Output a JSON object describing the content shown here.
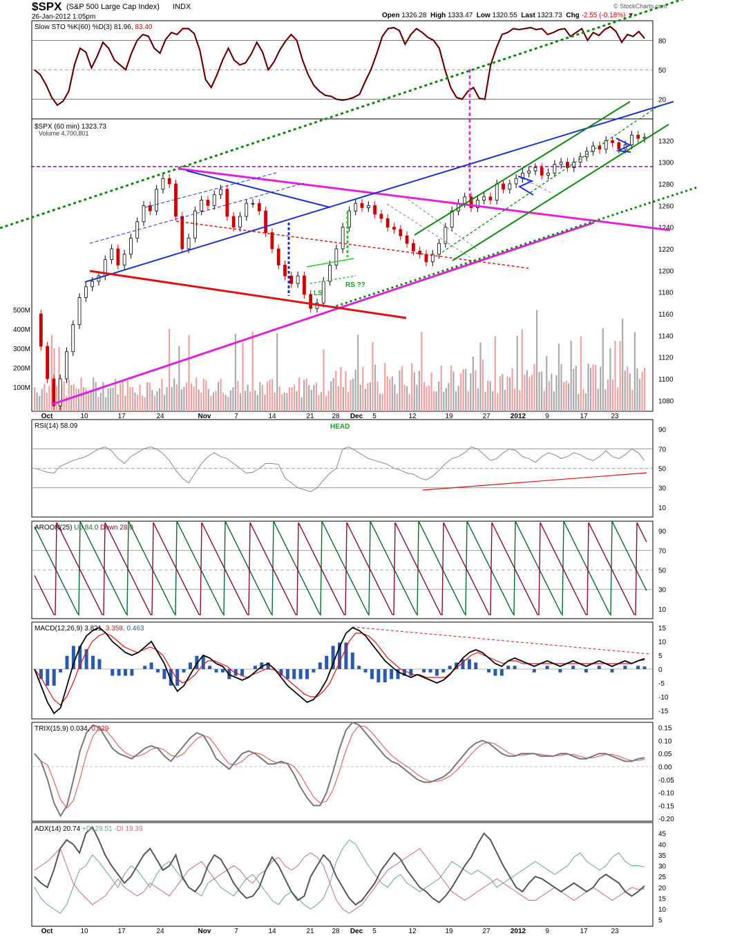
{
  "header": {
    "symbol": "$SPX",
    "name": "(S&P 500 Large Cap Index)",
    "exchange": "INDX",
    "datetime": "26-Jan-2012 1:05pm",
    "brand": "© StockCharts.com",
    "open_label": "Open",
    "open": "1326.28",
    "high_label": "High",
    "high": "1333.47",
    "low_label": "Low",
    "low": "1320.55",
    "last_label": "Last",
    "last": "1323.73",
    "chg_label": "Chg",
    "chg": "-2.55 (-0.18%)"
  },
  "colors": {
    "price_up": "#000000",
    "price_down": "#cc0000",
    "blue": "#1a33cc",
    "magenta": "#e020e0",
    "red": "#e01010",
    "green": "#0a8a0a",
    "dark_green": "#0a7a0a",
    "purple": "#7a1a8a",
    "sto_k": "#000000",
    "sto_d": "#cc0000",
    "rsi": "#888888",
    "aroon_up": "#0a6a2a",
    "aroon_down": "#8a0a3a",
    "macd_hist": "#2a5aa8",
    "trix": "#777777",
    "trix_sig": "#dd6666",
    "adx": "#555555",
    "plus_di": "#66aa77",
    "minus_di": "#cc6688",
    "vol_up": "#aaaaaa",
    "vol_down": "#f0a0a0"
  },
  "chart_data": [
    {
      "type": "line",
      "panel": "sto",
      "legend": "Slow STO %K(60) %D(3)",
      "k_value": "81.96",
      "d_value": "83.40",
      "yticks": [
        "80",
        "50",
        "20"
      ],
      "ylim": [
        0,
        100
      ],
      "k_series": [
        50,
        45,
        35,
        22,
        14,
        18,
        28,
        55,
        72,
        68,
        52,
        64,
        78,
        72,
        60,
        55,
        50,
        67,
        80,
        86,
        84,
        72,
        67,
        81,
        88,
        86,
        92,
        92,
        87,
        70,
        40,
        32,
        45,
        60,
        72,
        60,
        55,
        57,
        66,
        78,
        68,
        50,
        58,
        70,
        79,
        86,
        80,
        60,
        45,
        34,
        28,
        24,
        23,
        20,
        19,
        20,
        22,
        25,
        38,
        50,
        66,
        84,
        92,
        93,
        90,
        76,
        86,
        92,
        88,
        83,
        80,
        72,
        50,
        32,
        22,
        20,
        28,
        32,
        21,
        20,
        55,
        72,
        86,
        88,
        92,
        91,
        92,
        93,
        91,
        92,
        86,
        88,
        91,
        92,
        84,
        88,
        92,
        80,
        88,
        85,
        91,
        94,
        89,
        78,
        86,
        84,
        89,
        82
      ],
      "trend": "channel"
    },
    {
      "type": "candlestick",
      "panel": "price",
      "legend": "$SPX (60 min)",
      "last_value": "1323.73",
      "volume_legend": "Volume",
      "volume_value": "4,700,801",
      "ylim": [
        1070,
        1340
      ],
      "yticks": [
        "1320",
        "1300",
        "1280",
        "1260",
        "1240",
        "1220",
        "1200",
        "1180",
        "1160",
        "1140",
        "1120",
        "1100",
        "1080"
      ],
      "volume_ticks": [
        "500M",
        "400M",
        "300M",
        "200M",
        "100M"
      ],
      "close_series": [
        1160,
        1130,
        1100,
        1075,
        1100,
        1125,
        1150,
        1175,
        1185,
        1190,
        1195,
        1210,
        1220,
        1205,
        1215,
        1230,
        1245,
        1260,
        1255,
        1275,
        1285,
        1280,
        1250,
        1220,
        1230,
        1255,
        1265,
        1260,
        1270,
        1275,
        1250,
        1240,
        1250,
        1262,
        1262,
        1255,
        1235,
        1220,
        1205,
        1195,
        1188,
        1195,
        1178,
        1165,
        1170,
        1190,
        1205,
        1220,
        1240,
        1255,
        1262,
        1258,
        1260,
        1252,
        1248,
        1240,
        1238,
        1232,
        1225,
        1218,
        1215,
        1208,
        1215,
        1225,
        1240,
        1255,
        1262,
        1268,
        1258,
        1265,
        1268,
        1265,
        1280,
        1275,
        1280,
        1285,
        1290,
        1292,
        1295,
        1288,
        1290,
        1298,
        1300,
        1295,
        1300,
        1305,
        1310,
        1315,
        1312,
        1320,
        1318,
        1312,
        1316,
        1325,
        1322,
        1323
      ],
      "annotations": [
        "LS",
        "RS ??",
        "HEAD"
      ],
      "xticks": [
        "Oct",
        "10",
        "17",
        "24",
        "Nov",
        "7",
        "14",
        "21",
        "28",
        "Dec",
        "5",
        "12",
        "19",
        "27",
        "2012",
        "9",
        "17",
        "23"
      ]
    },
    {
      "type": "line",
      "panel": "rsi",
      "legend": "RSI(14)",
      "value": "58.09",
      "yticks": [
        "90",
        "70",
        "50",
        "30",
        "10"
      ],
      "ylim": [
        0,
        100
      ],
      "series": [
        50,
        48,
        46,
        45,
        52,
        55,
        58,
        60,
        62,
        66,
        70,
        72,
        68,
        60,
        55,
        62,
        66,
        70,
        72,
        70,
        65,
        58,
        48,
        40,
        35,
        45,
        55,
        62,
        66,
        62,
        60,
        55,
        50,
        45,
        46,
        50,
        55,
        55,
        54,
        40,
        35,
        30,
        28,
        26,
        30,
        38,
        45,
        50,
        70,
        72,
        68,
        64,
        60,
        58,
        56,
        54,
        50,
        48,
        45,
        44,
        40,
        38,
        42,
        48,
        55,
        60,
        62,
        66,
        72,
        70,
        64,
        58,
        60,
        66,
        70,
        68,
        62,
        60,
        56,
        62,
        66,
        64,
        60,
        62,
        66,
        64,
        60,
        58,
        62,
        68,
        62,
        60,
        64,
        70,
        66,
        58
      ]
    },
    {
      "type": "line",
      "panel": "aroon",
      "legend": "AROON(25)",
      "up_label": "Up",
      "up_value": "84.0",
      "down_label": "Down",
      "down_value": "28.0",
      "yticks": [
        "90",
        "70",
        "50",
        "30",
        "10"
      ],
      "ylim": [
        0,
        100
      ]
    },
    {
      "type": "line",
      "panel": "macd",
      "legend": "MACD(12,26,9)",
      "macd_value": "3.821",
      "signal_value": "3.358",
      "hist_value": "0.463",
      "yticks": [
        "15",
        "10",
        "5",
        "0",
        "-5",
        "-10",
        "-15"
      ],
      "ylim": [
        -18,
        17
      ],
      "series": [
        0,
        -6,
        -12,
        -16,
        -14,
        -6,
        2,
        8,
        12,
        14,
        15,
        13,
        10,
        8,
        6,
        5,
        6,
        8,
        10,
        6,
        2,
        -4,
        -8,
        -6,
        -2,
        2,
        5,
        4,
        2,
        1,
        -2,
        -3,
        -4,
        -3,
        -1,
        1,
        2,
        0,
        -3,
        -6,
        -8,
        -10,
        -12,
        -11,
        -8,
        -4,
        2,
        8,
        13,
        15,
        14,
        12,
        9,
        6,
        3,
        1,
        -1,
        -2,
        -3,
        -2,
        -3,
        -4,
        -5,
        -4,
        -2,
        1,
        4,
        6,
        7,
        6,
        4,
        2,
        1,
        3,
        4,
        3,
        2,
        1,
        2,
        3,
        2,
        1,
        2,
        3,
        2,
        1,
        2,
        3,
        2,
        1,
        2,
        3,
        2,
        3,
        3.8
      ],
      "signal": [
        0,
        -3,
        -7,
        -11,
        -13,
        -10,
        -5,
        1,
        6,
        10,
        12,
        13,
        12,
        10,
        8,
        7,
        6,
        7,
        8,
        7,
        5,
        1,
        -3,
        -5,
        -4,
        -2,
        1,
        3,
        3,
        2,
        1,
        -1,
        -2,
        -3,
        -2,
        -1,
        0,
        0,
        -1,
        -3,
        -5,
        -7,
        -9,
        -10,
        -10,
        -8,
        -5,
        0,
        5,
        10,
        13,
        13,
        12,
        10,
        7,
        4,
        2,
        0,
        -1,
        -2,
        -2,
        -3,
        -3,
        -3,
        -3,
        -1,
        1,
        3,
        5,
        6,
        5,
        4,
        3,
        2,
        3,
        3,
        2,
        2,
        2,
        2,
        2,
        2,
        2,
        2,
        2,
        2,
        2,
        2,
        2,
        2,
        2,
        2,
        2,
        2,
        3,
        3.36
      ]
    },
    {
      "type": "line",
      "panel": "trix",
      "legend": "TRIX(15,9)",
      "value": "0.034",
      "signal_value": "0.029",
      "yticks": [
        "0.15",
        "0.10",
        "0.05",
        "0.00",
        "-0.05",
        "-0.10",
        "-0.15",
        "-0.20"
      ],
      "ylim": [
        -0.21,
        0.17
      ],
      "series": [
        0.05,
        0.02,
        -0.05,
        -0.14,
        -0.19,
        -0.15,
        -0.05,
        0.06,
        0.13,
        0.16,
        0.15,
        0.11,
        0.07,
        0.05,
        0.04,
        0.03,
        0.05,
        0.07,
        0.08,
        0.07,
        0.04,
        0.02,
        0.05,
        0.08,
        0.11,
        0.13,
        0.12,
        0.08,
        0.03,
        0.01,
        -0.01,
        0.02,
        0.05,
        0.06,
        0.05,
        0.03,
        0.01,
        0.01,
        0.02,
        0.01,
        -0.03,
        -0.08,
        -0.12,
        -0.15,
        -0.15,
        -0.1,
        -0.02,
        0.07,
        0.14,
        0.17,
        0.16,
        0.13,
        0.1,
        0.07,
        0.04,
        0.02,
        0.01,
        -0.01,
        -0.03,
        -0.05,
        -0.06,
        -0.06,
        -0.05,
        -0.04,
        -0.02,
        0.01,
        0.04,
        0.07,
        0.09,
        0.1,
        0.09,
        0.07,
        0.05,
        0.04,
        0.04,
        0.05,
        0.05,
        0.05,
        0.04,
        0.04,
        0.04,
        0.05,
        0.05,
        0.04,
        0.03,
        0.03,
        0.04,
        0.05,
        0.05,
        0.04,
        0.03,
        0.02,
        0.02,
        0.03,
        0.034
      ]
    },
    {
      "type": "line",
      "panel": "adx",
      "legend": "ADX(14)",
      "adx_value": "20.74",
      "plus_di_label": "+DI",
      "plus_di_value": "29.51",
      "minus_di_label": "-DI",
      "minus_di_value": "19.39",
      "yticks": [
        "45",
        "40",
        "35",
        "30",
        "25",
        "20",
        "15",
        "10",
        "5"
      ],
      "ylim": [
        2,
        50
      ],
      "adx": [
        25,
        22,
        20,
        28,
        38,
        42,
        40,
        36,
        45,
        48,
        42,
        35,
        30,
        26,
        22,
        25,
        30,
        35,
        38,
        33,
        28,
        30,
        35,
        25,
        20,
        18,
        22,
        30,
        35,
        33,
        28,
        22,
        18,
        15,
        16,
        20,
        28,
        34,
        30,
        24,
        18,
        14,
        16,
        25,
        30,
        35,
        32,
        25,
        20,
        15,
        12,
        14,
        18,
        22,
        28,
        32,
        36,
        33,
        28,
        24,
        20,
        18,
        15,
        13,
        16,
        20,
        25,
        30,
        34,
        40,
        45,
        42,
        36,
        30,
        25,
        20,
        18,
        22,
        25,
        24,
        22,
        20,
        18,
        20,
        22,
        20,
        18,
        20,
        24,
        26,
        24,
        22,
        18,
        16,
        18,
        20.7
      ],
      "plus_di": [
        20,
        15,
        12,
        10,
        8,
        12,
        20,
        28,
        30,
        35,
        32,
        28,
        24,
        20,
        26,
        30,
        28,
        24,
        20,
        26,
        30,
        32,
        28,
        24,
        20,
        18,
        16,
        22,
        24,
        20,
        18,
        16,
        20,
        24,
        26,
        22,
        18,
        14,
        12,
        16,
        18,
        15,
        12,
        10,
        12,
        15,
        22,
        32,
        38,
        42,
        40,
        35,
        30,
        26,
        22,
        20,
        24,
        26,
        22,
        20,
        18,
        20,
        22,
        24,
        28,
        32,
        30,
        28,
        26,
        28,
        26,
        24,
        20,
        22,
        24,
        26,
        28,
        30,
        32,
        30,
        28,
        26,
        28,
        30,
        34,
        36,
        32,
        30,
        28,
        30,
        34,
        36,
        32,
        30,
        30,
        29.5
      ],
      "minus_di": [
        28,
        30,
        32,
        35,
        38,
        30,
        22,
        18,
        15,
        12,
        14,
        16,
        20,
        24,
        20,
        18,
        16,
        18,
        22,
        20,
        18,
        16,
        20,
        24,
        28,
        30,
        32,
        28,
        24,
        26,
        28,
        30,
        28,
        24,
        22,
        26,
        28,
        32,
        34,
        30,
        28,
        30,
        34,
        36,
        34,
        30,
        22,
        14,
        10,
        8,
        10,
        12,
        16,
        20,
        24,
        28,
        30,
        32,
        34,
        36,
        38,
        34,
        30,
        26,
        22,
        18,
        16,
        14,
        16,
        18,
        20,
        22,
        24,
        22,
        20,
        18,
        16,
        14,
        14,
        16,
        18,
        20,
        18,
        16,
        14,
        16,
        18,
        20,
        18,
        16,
        14,
        16,
        18,
        20,
        19,
        19.4
      ]
    }
  ]
}
